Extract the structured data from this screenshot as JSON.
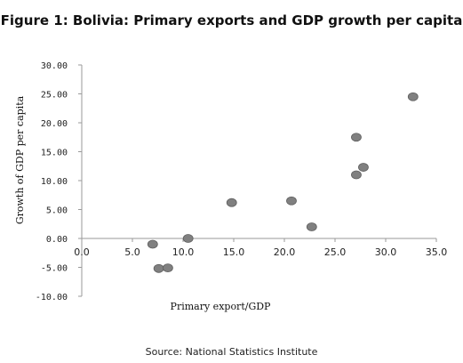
{
  "figure": {
    "title": "Figure  1: Bolivia: Primary exports and GDP growth per capita",
    "source": "Source: National Statistics Institute"
  },
  "chart_data": {
    "type": "scatter",
    "title": "",
    "xlabel": "Primary export/GDP",
    "ylabel": "Growth of GDP per capita",
    "xlim": [
      0,
      35
    ],
    "ylim": [
      -10,
      30
    ],
    "x_ticks": [
      0,
      5,
      10,
      15,
      20,
      25,
      30,
      35
    ],
    "x_tick_labels": [
      "0.0",
      "5.0",
      "10.0",
      "15.0",
      "20.0",
      "25.0",
      "30.0",
      "35.0"
    ],
    "y_ticks": [
      30,
      25,
      20,
      15,
      10,
      5,
      0,
      -5,
      -10
    ],
    "y_tick_labels": [
      "30.00",
      "25.00",
      "20.00",
      "15.00",
      "10.00",
      "5.00",
      "0.00",
      "-5.00",
      "-10.00"
    ],
    "grid": false,
    "legend": "none",
    "marker_color": "#808080",
    "points": [
      {
        "x": 7.0,
        "y": -1.0
      },
      {
        "x": 7.6,
        "y": -5.2
      },
      {
        "x": 8.5,
        "y": -5.1
      },
      {
        "x": 10.5,
        "y": 0.0
      },
      {
        "x": 14.8,
        "y": 6.2
      },
      {
        "x": 20.7,
        "y": 6.5
      },
      {
        "x": 22.7,
        "y": 2.0
      },
      {
        "x": 27.1,
        "y": 17.5
      },
      {
        "x": 27.1,
        "y": 11.0
      },
      {
        "x": 27.8,
        "y": 12.3
      },
      {
        "x": 32.7,
        "y": 24.5
      }
    ]
  }
}
